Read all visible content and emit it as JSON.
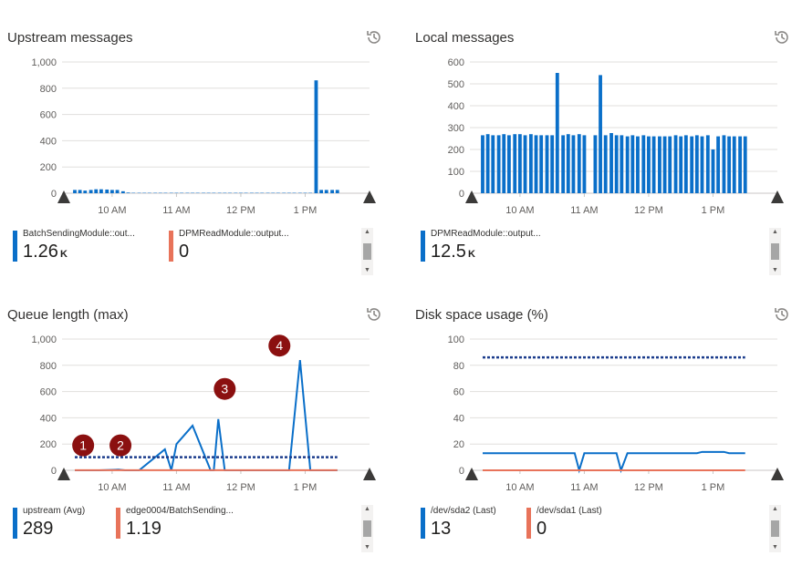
{
  "colors": {
    "blue": "#0a6fc9",
    "orange": "#e8735a",
    "dotted": "#1b3c8c",
    "grid": "#e1dfdd",
    "marker": "#8b1010"
  },
  "panels": [
    {
      "title": "Upstream messages",
      "history_icon": "history-icon",
      "legend": [
        {
          "name": "BatchSendingModule::out...",
          "value": "1.26",
          "unit": "K",
          "color": "blue"
        },
        {
          "name": "DPMReadModule::output...",
          "value": "0",
          "unit": "",
          "color": "orange"
        }
      ]
    },
    {
      "title": "Local messages",
      "history_icon": "history-icon",
      "legend": [
        {
          "name": "DPMReadModule::output...",
          "value": "12.5",
          "unit": "K",
          "color": "blue"
        }
      ]
    },
    {
      "title": "Queue length (max)",
      "history_icon": "history-icon",
      "legend": [
        {
          "name": "upstream (Avg)",
          "value": "289",
          "unit": "",
          "color": "blue"
        },
        {
          "name": "edge0004/BatchSending...",
          "value": "1.19",
          "unit": "",
          "color": "orange"
        }
      ]
    },
    {
      "title": "Disk space usage (%)",
      "history_icon": "history-icon",
      "legend": [
        {
          "name": "/dev/sda2 (Last)",
          "value": "13",
          "unit": "",
          "color": "blue"
        },
        {
          "name": "/dev/sda1 (Last)",
          "value": "0",
          "unit": "",
          "color": "orange"
        }
      ]
    }
  ],
  "chart_data": [
    {
      "type": "bar",
      "ylim": [
        0,
        1000
      ],
      "y_ticks": [
        "0",
        "200",
        "400",
        "600",
        "800",
        "1,000"
      ],
      "x_ticks": [
        "10 AM",
        "11 AM",
        "12 PM",
        "1 PM"
      ],
      "x_tick_times": [
        10,
        11,
        12,
        13
      ],
      "x_range": [
        9.25,
        14.0
      ],
      "series": [
        {
          "color": "blue",
          "x": [
            9.42,
            9.5,
            9.58,
            9.67,
            9.75,
            9.83,
            9.92,
            10.0,
            10.08,
            10.17,
            10.25,
            10.33,
            10.42,
            10.5,
            10.58,
            10.67,
            10.75,
            10.83,
            10.92,
            11.0,
            11.08,
            11.17,
            11.25,
            11.33,
            11.42,
            11.5,
            11.58,
            11.67,
            11.75,
            11.83,
            11.92,
            12.0,
            12.08,
            12.17,
            12.25,
            12.33,
            12.42,
            12.5,
            12.58,
            12.67,
            12.75,
            12.83,
            12.92,
            13.0,
            13.08,
            13.17,
            13.25,
            13.33,
            13.42,
            13.5
          ],
          "values": [
            25,
            25,
            20,
            25,
            30,
            30,
            28,
            25,
            25,
            15,
            5,
            3,
            3,
            3,
            3,
            3,
            3,
            3,
            3,
            3,
            3,
            3,
            3,
            3,
            3,
            3,
            3,
            3,
            3,
            3,
            3,
            3,
            3,
            3,
            3,
            3,
            3,
            3,
            3,
            3,
            3,
            3,
            3,
            3,
            3,
            860,
            25,
            25,
            25,
            25
          ]
        }
      ],
      "threshold": null,
      "markers": []
    },
    {
      "type": "bar",
      "ylim": [
        0,
        600
      ],
      "y_ticks": [
        "0",
        "100",
        "200",
        "300",
        "400",
        "500",
        "600"
      ],
      "x_ticks": [
        "10 AM",
        "11 AM",
        "12 PM",
        "1 PM"
      ],
      "x_tick_times": [
        10,
        11,
        12,
        13
      ],
      "x_range": [
        9.25,
        14.0
      ],
      "series": [
        {
          "color": "blue",
          "x": [
            9.42,
            9.5,
            9.58,
            9.67,
            9.75,
            9.83,
            9.92,
            10.0,
            10.08,
            10.17,
            10.25,
            10.33,
            10.42,
            10.5,
            10.58,
            10.67,
            10.75,
            10.83,
            10.92,
            11.0,
            11.08,
            11.17,
            11.25,
            11.33,
            11.42,
            11.5,
            11.58,
            11.67,
            11.75,
            11.83,
            11.92,
            12.0,
            12.08,
            12.17,
            12.25,
            12.33,
            12.42,
            12.5,
            12.58,
            12.67,
            12.75,
            12.83,
            12.92,
            13.0,
            13.08,
            13.17,
            13.25,
            13.33,
            13.42,
            13.5
          ],
          "values": [
            265,
            270,
            265,
            265,
            270,
            265,
            270,
            270,
            265,
            270,
            265,
            265,
            265,
            265,
            550,
            265,
            270,
            265,
            270,
            265,
            0,
            265,
            540,
            265,
            275,
            265,
            265,
            260,
            265,
            260,
            265,
            260,
            260,
            260,
            260,
            260,
            265,
            260,
            265,
            260,
            265,
            260,
            265,
            200,
            260,
            265,
            260,
            260,
            260,
            260
          ]
        }
      ],
      "threshold": null,
      "markers": []
    },
    {
      "type": "line",
      "ylim": [
        0,
        1000
      ],
      "y_ticks": [
        "0",
        "200",
        "400",
        "600",
        "800",
        "1,000"
      ],
      "x_ticks": [
        "10 AM",
        "11 AM",
        "12 PM",
        "1 PM"
      ],
      "x_tick_times": [
        10,
        11,
        12,
        13
      ],
      "x_range": [
        9.25,
        14.0
      ],
      "series": [
        {
          "color": "blue",
          "x": [
            9.42,
            9.8,
            10.1,
            10.2,
            10.42,
            10.82,
            10.92,
            11.0,
            11.25,
            11.53,
            11.58,
            11.65,
            11.75,
            12.75,
            12.92,
            13.08,
            13.5
          ],
          "values": [
            0,
            0,
            5,
            0,
            0,
            160,
            0,
            200,
            340,
            0,
            0,
            390,
            0,
            0,
            840,
            0,
            0
          ]
        },
        {
          "color": "orange",
          "x": [
            9.42,
            13.5
          ],
          "values": [
            1,
            1
          ]
        }
      ],
      "threshold": 100,
      "markers": [
        {
          "label": "1",
          "x": 9.55,
          "y": 190
        },
        {
          "label": "2",
          "x": 10.13,
          "y": 190
        },
        {
          "label": "3",
          "x": 11.75,
          "y": 620
        },
        {
          "label": "4",
          "x": 12.6,
          "y": 950
        }
      ]
    },
    {
      "type": "line",
      "ylim": [
        0,
        100
      ],
      "y_ticks": [
        "0",
        "20",
        "40",
        "60",
        "80",
        "100"
      ],
      "x_ticks": [
        "10 AM",
        "11 AM",
        "12 PM",
        "1 PM"
      ],
      "x_tick_times": [
        10,
        11,
        12,
        13
      ],
      "x_range": [
        9.25,
        14.0
      ],
      "series": [
        {
          "color": "blue",
          "x": [
            9.42,
            10.85,
            10.92,
            11.0,
            11.5,
            11.57,
            11.67,
            12.75,
            12.83,
            13.17,
            13.25,
            13.5
          ],
          "values": [
            13,
            13,
            0,
            13,
            13,
            0,
            13,
            13,
            14,
            14,
            13,
            13
          ]
        },
        {
          "color": "orange",
          "x": [
            9.42,
            13.5
          ],
          "values": [
            0,
            0
          ]
        }
      ],
      "threshold": 86,
      "markers": []
    }
  ]
}
